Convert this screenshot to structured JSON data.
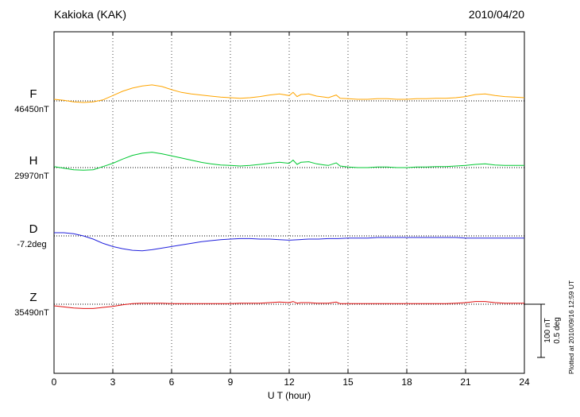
{
  "header": {
    "title": "Kakioka (KAK)",
    "date": "2010/04/20"
  },
  "xaxis": {
    "label": "U T (hour)",
    "min": 0,
    "max": 24,
    "ticks": [
      0,
      3,
      6,
      9,
      12,
      15,
      18,
      21,
      24
    ]
  },
  "scale_bar": {
    "nt_label": "100 nT",
    "deg_label": "0.5 deg"
  },
  "footnote": "Plotted at 2010/09/16 12:59 UT",
  "chart_data": {
    "type": "line",
    "title": "Kakioka (KAK) magnetogram 2010/04/20",
    "xlabel": "U T (hour)",
    "xlim": [
      0,
      24
    ],
    "grid": "vertical-dotted-every-3h",
    "legend_position": "left-of-each-trace",
    "scale": {
      "nT_per_bar": 100,
      "deg_per_bar": 0.5
    },
    "series": [
      {
        "name": "F",
        "baseline_label": "46450nT",
        "unit": "nT",
        "color": "#ffa500",
        "points": [
          [
            0,
            3
          ],
          [
            0.5,
            1
          ],
          [
            1,
            -2
          ],
          [
            1.5,
            -3
          ],
          [
            2,
            -2
          ],
          [
            2.5,
            2
          ],
          [
            3,
            10
          ],
          [
            3.5,
            18
          ],
          [
            4,
            24
          ],
          [
            4.5,
            28
          ],
          [
            5,
            30
          ],
          [
            5.5,
            27
          ],
          [
            6,
            21
          ],
          [
            6.5,
            16
          ],
          [
            7,
            13
          ],
          [
            7.5,
            11
          ],
          [
            8,
            9
          ],
          [
            8.5,
            7
          ],
          [
            9,
            6
          ],
          [
            9.5,
            5
          ],
          [
            10,
            6
          ],
          [
            10.5,
            8
          ],
          [
            11,
            11
          ],
          [
            11.5,
            13
          ],
          [
            12,
            10
          ],
          [
            12.2,
            16
          ],
          [
            12.4,
            8
          ],
          [
            12.6,
            12
          ],
          [
            13,
            13
          ],
          [
            13.4,
            9
          ],
          [
            13.8,
            7
          ],
          [
            14,
            6
          ],
          [
            14.4,
            11
          ],
          [
            14.6,
            5
          ],
          [
            15,
            4
          ],
          [
            15.5,
            3
          ],
          [
            16,
            3
          ],
          [
            16.5,
            4
          ],
          [
            17,
            4
          ],
          [
            17.5,
            3
          ],
          [
            18,
            3
          ],
          [
            18.5,
            4
          ],
          [
            19,
            4
          ],
          [
            19.5,
            5
          ],
          [
            20,
            5
          ],
          [
            20.5,
            6
          ],
          [
            21,
            8
          ],
          [
            21.5,
            12
          ],
          [
            22,
            13
          ],
          [
            22.5,
            10
          ],
          [
            23,
            8
          ],
          [
            23.5,
            7
          ],
          [
            24,
            6
          ]
        ]
      },
      {
        "name": "H",
        "baseline_label": "29970nT",
        "unit": "nT",
        "color": "#00c832",
        "points": [
          [
            0,
            2
          ],
          [
            0.5,
            -1
          ],
          [
            1,
            -4
          ],
          [
            1.5,
            -5
          ],
          [
            2,
            -4
          ],
          [
            2.5,
            2
          ],
          [
            3,
            8
          ],
          [
            3.5,
            16
          ],
          [
            4,
            23
          ],
          [
            4.5,
            27
          ],
          [
            5,
            29
          ],
          [
            5.5,
            26
          ],
          [
            6,
            22
          ],
          [
            6.5,
            18
          ],
          [
            7,
            14
          ],
          [
            7.5,
            10
          ],
          [
            8,
            7
          ],
          [
            8.5,
            5
          ],
          [
            9,
            4
          ],
          [
            9.5,
            3
          ],
          [
            10,
            4
          ],
          [
            10.5,
            6
          ],
          [
            11,
            8
          ],
          [
            11.5,
            10
          ],
          [
            12,
            8
          ],
          [
            12.2,
            14
          ],
          [
            12.4,
            6
          ],
          [
            12.6,
            10
          ],
          [
            13,
            11
          ],
          [
            13.4,
            7
          ],
          [
            13.8,
            5
          ],
          [
            14,
            4
          ],
          [
            14.4,
            9
          ],
          [
            14.6,
            3
          ],
          [
            15,
            1
          ],
          [
            15.5,
            0
          ],
          [
            16,
            0
          ],
          [
            16.5,
            1
          ],
          [
            17,
            1
          ],
          [
            17.5,
            0
          ],
          [
            18,
            0
          ],
          [
            18.5,
            1
          ],
          [
            19,
            1
          ],
          [
            19.5,
            2
          ],
          [
            20,
            2
          ],
          [
            20.5,
            3
          ],
          [
            21,
            4
          ],
          [
            21.5,
            6
          ],
          [
            22,
            7
          ],
          [
            22.5,
            5
          ],
          [
            23,
            4
          ],
          [
            23.5,
            4
          ],
          [
            24,
            4
          ]
        ]
      },
      {
        "name": "D",
        "baseline_label": "-7.2deg",
        "unit": "deg",
        "color": "#2222dd",
        "points": [
          [
            0,
            0.03
          ],
          [
            0.5,
            0.03
          ],
          [
            1,
            0.02
          ],
          [
            1.5,
            0
          ],
          [
            2,
            -0.03
          ],
          [
            2.5,
            -0.07
          ],
          [
            3,
            -0.1
          ],
          [
            3.5,
            -0.12
          ],
          [
            4,
            -0.135
          ],
          [
            4.5,
            -0.14
          ],
          [
            5,
            -0.13
          ],
          [
            5.5,
            -0.115
          ],
          [
            6,
            -0.1
          ],
          [
            6.5,
            -0.085
          ],
          [
            7,
            -0.07
          ],
          [
            7.5,
            -0.055
          ],
          [
            8,
            -0.045
          ],
          [
            8.5,
            -0.035
          ],
          [
            9,
            -0.03
          ],
          [
            9.5,
            -0.025
          ],
          [
            10,
            -0.025
          ],
          [
            10.5,
            -0.03
          ],
          [
            11,
            -0.03
          ],
          [
            11.5,
            -0.035
          ],
          [
            12,
            -0.04
          ],
          [
            12.5,
            -0.035
          ],
          [
            13,
            -0.03
          ],
          [
            13.5,
            -0.03
          ],
          [
            14,
            -0.025
          ],
          [
            14.5,
            -0.025
          ],
          [
            15,
            -0.02
          ],
          [
            15.5,
            -0.02
          ],
          [
            16,
            -0.02
          ],
          [
            16.5,
            -0.015
          ],
          [
            17,
            -0.015
          ],
          [
            17.5,
            -0.015
          ],
          [
            18,
            -0.015
          ],
          [
            18.5,
            -0.015
          ],
          [
            19,
            -0.015
          ],
          [
            19.5,
            -0.015
          ],
          [
            20,
            -0.015
          ],
          [
            20.5,
            -0.015
          ],
          [
            21,
            -0.02
          ],
          [
            21.5,
            -0.02
          ],
          [
            22,
            -0.02
          ],
          [
            22.5,
            -0.02
          ],
          [
            23,
            -0.02
          ],
          [
            23.5,
            -0.02
          ],
          [
            24,
            -0.02
          ]
        ]
      },
      {
        "name": "Z",
        "baseline_label": "35490nT",
        "unit": "nT",
        "color": "#e01010",
        "points": [
          [
            0,
            -3
          ],
          [
            0.5,
            -5
          ],
          [
            1,
            -7
          ],
          [
            1.5,
            -8
          ],
          [
            2,
            -8
          ],
          [
            2.5,
            -6
          ],
          [
            3,
            -4
          ],
          [
            3.5,
            -1
          ],
          [
            4,
            1
          ],
          [
            4.5,
            2
          ],
          [
            5,
            2
          ],
          [
            5.5,
            2
          ],
          [
            6,
            1
          ],
          [
            6.5,
            1
          ],
          [
            7,
            1
          ],
          [
            7.5,
            1
          ],
          [
            8,
            1
          ],
          [
            8.5,
            1
          ],
          [
            9,
            1
          ],
          [
            9.5,
            2
          ],
          [
            10,
            2
          ],
          [
            10.5,
            2
          ],
          [
            11,
            3
          ],
          [
            11.5,
            4
          ],
          [
            12,
            3
          ],
          [
            12.2,
            5
          ],
          [
            12.4,
            2
          ],
          [
            12.6,
            3
          ],
          [
            13,
            3
          ],
          [
            13.4,
            2
          ],
          [
            13.8,
            2
          ],
          [
            14,
            2
          ],
          [
            14.4,
            4
          ],
          [
            14.6,
            1
          ],
          [
            15,
            1
          ],
          [
            15.5,
            1
          ],
          [
            16,
            1
          ],
          [
            16.5,
            1
          ],
          [
            17,
            1
          ],
          [
            17.5,
            1
          ],
          [
            18,
            1
          ],
          [
            18.5,
            1
          ],
          [
            19,
            1
          ],
          [
            19.5,
            1
          ],
          [
            20,
            1
          ],
          [
            20.5,
            2
          ],
          [
            21,
            3
          ],
          [
            21.5,
            5
          ],
          [
            22,
            5
          ],
          [
            22.5,
            3
          ],
          [
            23,
            2
          ],
          [
            23.5,
            2
          ],
          [
            24,
            2
          ]
        ]
      }
    ]
  }
}
